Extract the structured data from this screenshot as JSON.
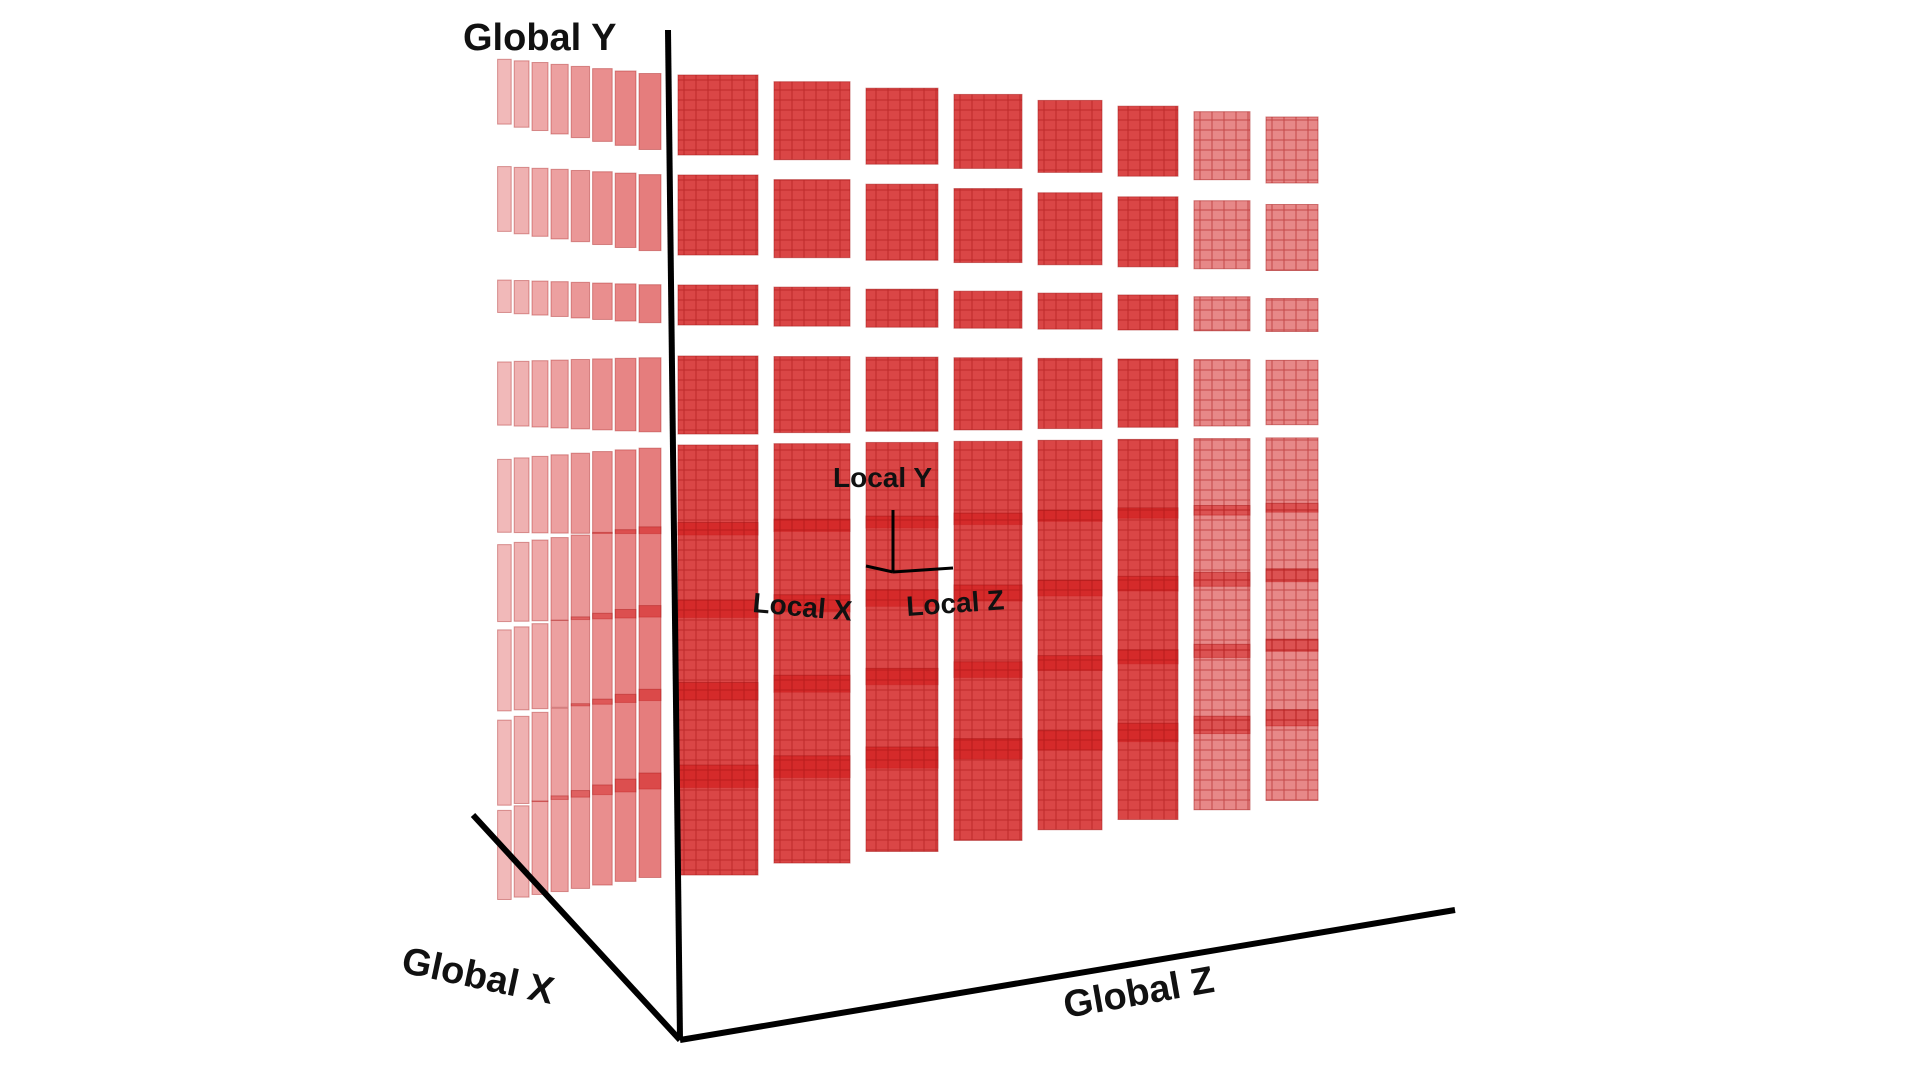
{
  "diagram": {
    "axes": {
      "global_y": "Global Y",
      "global_x": "Global X",
      "global_z": "Global Z",
      "local_y": "Local Y",
      "local_x": "Local X",
      "local_z": "Local Z"
    },
    "block_color": "#d42626",
    "block_edge_color": "#a51414",
    "axis_color": "#000000"
  }
}
